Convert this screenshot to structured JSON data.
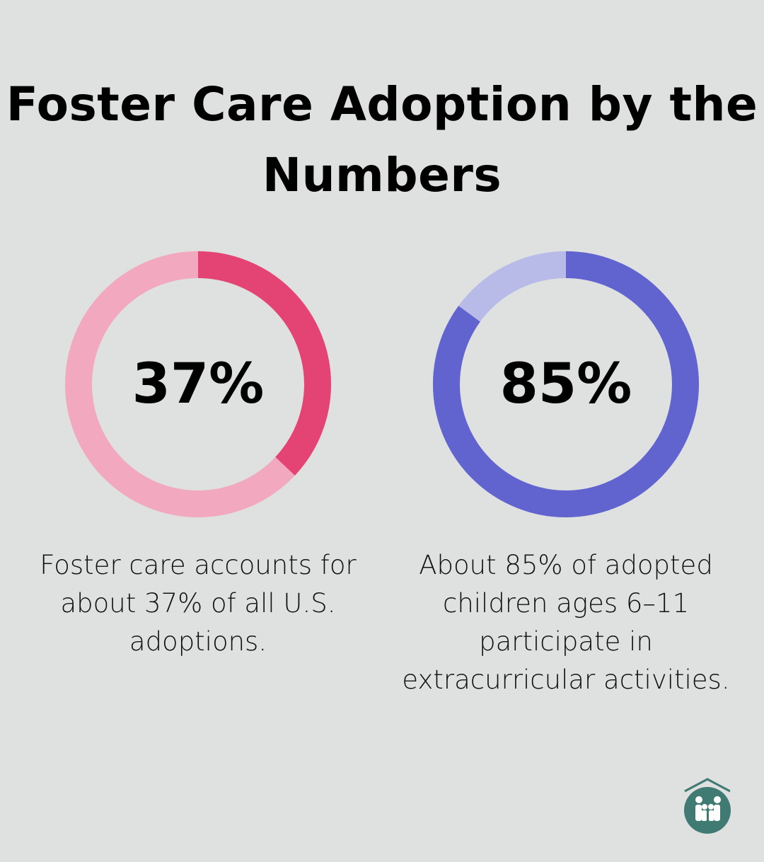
{
  "title": "Foster Care Adoption by the Numbers",
  "chart_data": [
    {
      "type": "pie",
      "variant": "donut",
      "label": "37%",
      "value": 37,
      "max": 100,
      "description": "Foster care accounts for about 37% of all U.S. adoptions.",
      "colors": {
        "filled": "#e44474",
        "remainder": "#f2a8be"
      }
    },
    {
      "type": "pie",
      "variant": "donut",
      "label": "85%",
      "value": 85,
      "max": 100,
      "description": "About 85% of adopted children ages 6–11 participate in extracurricular activities.",
      "colors": {
        "filled": "#6163cf",
        "remainder": "#b8bbe8"
      }
    }
  ],
  "colors": {
    "background": "#dfe1e0",
    "logo": "#3f7b73"
  },
  "logo": {
    "icon": "house-family-icon"
  }
}
